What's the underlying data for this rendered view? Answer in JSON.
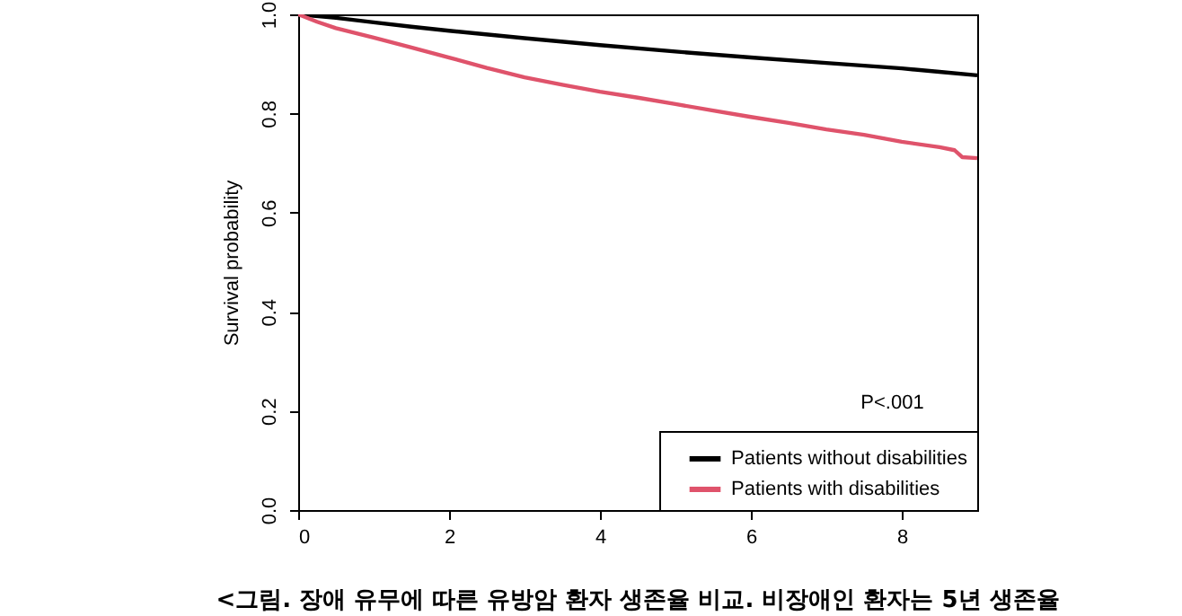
{
  "chart_data": {
    "type": "line",
    "ylabel": "Survival probability",
    "annotations": [
      "P<.001",
      "<그림. 장애 유무에 따른 유방암 환자 생존율 비교. 비장애인 환자는 5년 생존율"
    ],
    "series": [
      {
        "name": "Patients without disabilities",
        "color": "#000000",
        "x": [
          0,
          0.5,
          1,
          1.5,
          2,
          3,
          4,
          5,
          6,
          7,
          8,
          8.5,
          9
        ],
        "values": [
          1.0,
          0.993,
          0.984,
          0.975,
          0.967,
          0.952,
          0.938,
          0.925,
          0.913,
          0.902,
          0.891,
          0.884,
          0.877
        ]
      },
      {
        "name": "Patients with disabilities",
        "color": "#df536b",
        "x": [
          0,
          0.25,
          0.5,
          1,
          1.5,
          2,
          2.5,
          3,
          3.5,
          4,
          4.5,
          5,
          5.5,
          6,
          6.5,
          7,
          7.5,
          8,
          8.5,
          8.7,
          8.8,
          9
        ],
        "values": [
          1.0,
          0.985,
          0.972,
          0.953,
          0.933,
          0.913,
          0.892,
          0.873,
          0.858,
          0.844,
          0.832,
          0.819,
          0.806,
          0.793,
          0.781,
          0.768,
          0.757,
          0.743,
          0.732,
          0.726,
          0.712,
          0.71
        ]
      }
    ],
    "xlim": [
      0,
      9
    ],
    "xticks": [
      0,
      2,
      4,
      6,
      8
    ],
    "ylim": [
      0,
      1
    ],
    "yticks": [
      {
        "value": 0,
        "label": "0.0"
      },
      0.2,
      0.4,
      0.6,
      0.8,
      {
        "value": 1,
        "label": "1.0"
      }
    ],
    "grid": false,
    "legend": "bottom right",
    "line_style": "solid",
    "marker": "none"
  }
}
